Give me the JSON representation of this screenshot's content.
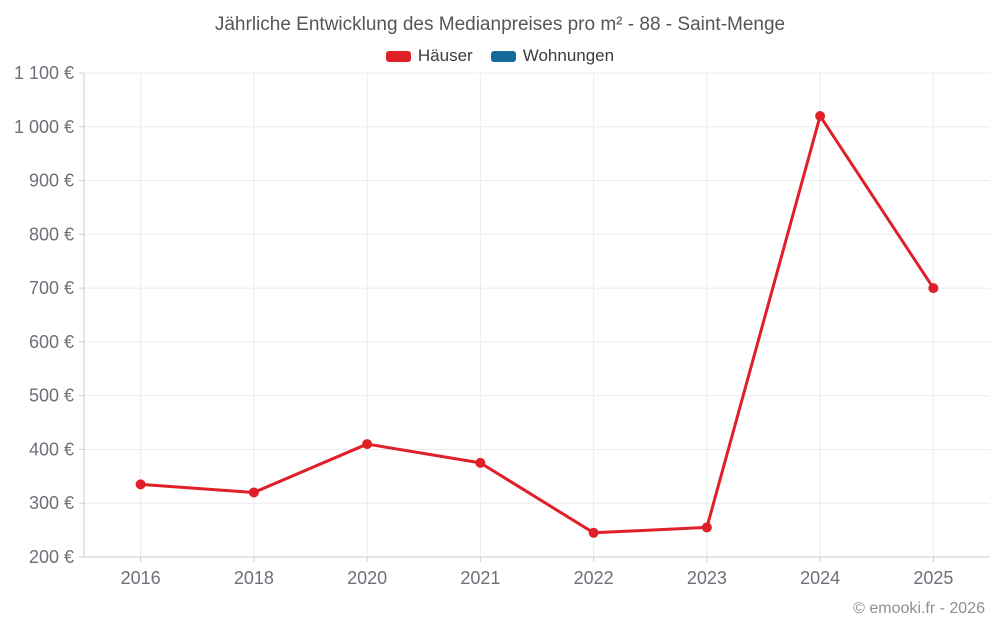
{
  "title": "Jährliche Entwicklung des Medianpreises pro m² - 88 - Saint-Menge",
  "legend": {
    "items": [
      {
        "label": "Häuser",
        "color": "#e02028"
      },
      {
        "label": "Wohnungen",
        "color": "#17699c"
      }
    ]
  },
  "footer": {
    "copyright": "© emooki.fr - 2026"
  },
  "colors": {
    "haeuser_red": "#e02028",
    "wohnungen_blue": "#17699c",
    "gridline": "#ececec",
    "axis_line": "#cccccc",
    "axis_label": "#6e7079",
    "title_text": "#565656",
    "footer_text": "#8f8f8f"
  },
  "chart_data": {
    "type": "line",
    "title": "Jährliche Entwicklung des Medianpreises pro m² - 88 - Saint-Menge",
    "categories": [
      "2016",
      "2018",
      "2020",
      "2021",
      "2022",
      "2023",
      "2024",
      "2025"
    ],
    "series": [
      {
        "name": "Häuser",
        "color": "#e02028",
        "values": [
          335,
          320,
          410,
          375,
          245,
          255,
          1020,
          700
        ]
      },
      {
        "name": "Wohnungen",
        "color": "#17699c",
        "values": []
      }
    ],
    "xlabel": "",
    "ylabel": "",
    "ylim": [
      200,
      1100
    ],
    "y_step": 100,
    "y_tick_suffix": " €",
    "y_tick_labels": [
      "200 €",
      "300 €",
      "400 €",
      "500 €",
      "600 €",
      "700 €",
      "800 €",
      "900 €",
      "1 000 €",
      "1 100 €"
    ],
    "grid": true,
    "legend_position": "top",
    "unit": "€ pro m²"
  }
}
